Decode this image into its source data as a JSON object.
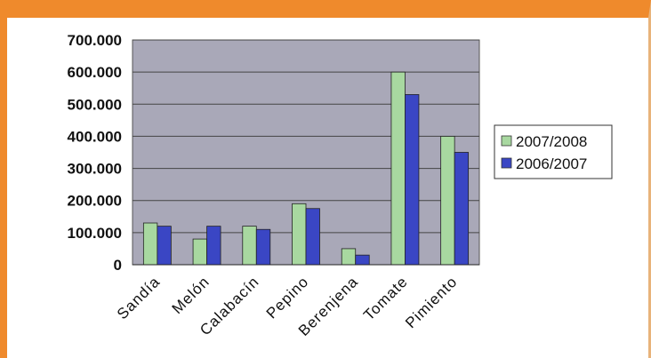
{
  "chart_data": {
    "type": "bar",
    "categories": [
      "Sandía",
      "Melón",
      "Calabacín",
      "Pepino",
      "Berenjena",
      "Tomate",
      "Pimiento"
    ],
    "series": [
      {
        "name": "2007/2008",
        "color": "#a8d8a0",
        "values": [
          130000,
          80000,
          120000,
          190000,
          50000,
          600000,
          400000
        ]
      },
      {
        "name": "2006/2007",
        "color": "#3a46c4",
        "values": [
          120000,
          120000,
          110000,
          175000,
          30000,
          530000,
          350000
        ]
      }
    ],
    "y_ticks": [
      "0",
      "100.000",
      "200.000",
      "300.000",
      "400.000",
      "500.000",
      "600.000",
      "700.000"
    ],
    "ylim": [
      0,
      700000
    ],
    "legend_position": "right",
    "grid": true,
    "plot_background": "#a9a8b8"
  }
}
